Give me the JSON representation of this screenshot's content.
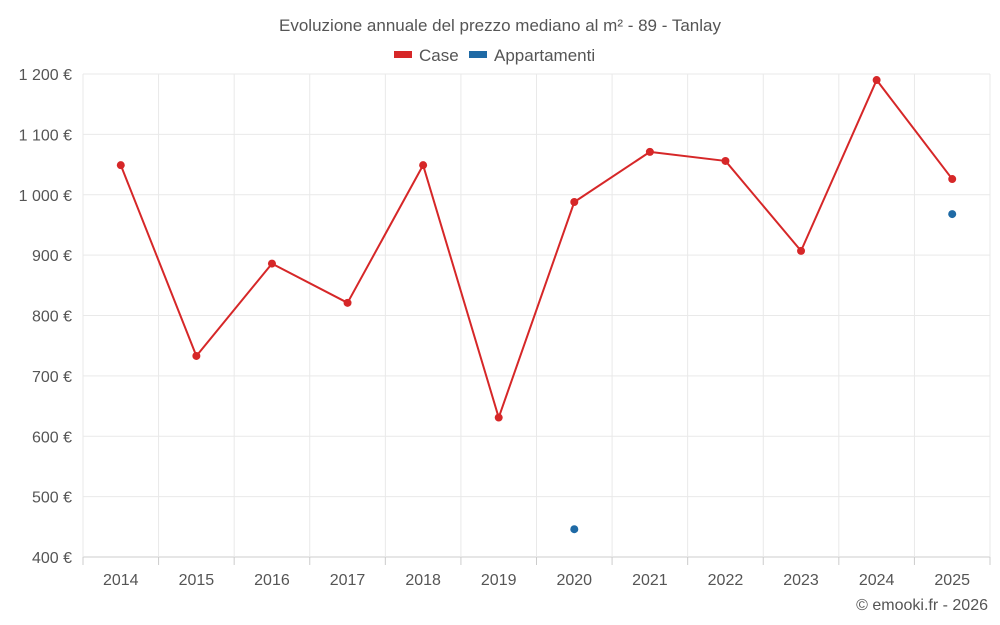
{
  "chart_data": {
    "type": "line",
    "title": "Evoluzione annuale del prezzo mediano al m² - 89 - Tanlay",
    "categories": [
      "2014",
      "2015",
      "2016",
      "2017",
      "2018",
      "2019",
      "2020",
      "2021",
      "2022",
      "2023",
      "2024",
      "2025"
    ],
    "series": [
      {
        "name": "Case",
        "color": "#d62728",
        "values": [
          1049,
          733,
          886,
          821,
          1049,
          631,
          988,
          1071,
          1056,
          907,
          1190,
          1026
        ]
      },
      {
        "name": "Appartamenti",
        "color": "#1f6aa5",
        "values": [
          null,
          null,
          null,
          null,
          null,
          null,
          446,
          null,
          null,
          null,
          null,
          968
        ]
      }
    ],
    "ylim": [
      400,
      1200
    ],
    "yticks": [
      400,
      500,
      600,
      700,
      800,
      900,
      1000,
      1100,
      1200
    ],
    "ytick_labels": [
      "400 €",
      "500 €",
      "600 €",
      "700 €",
      "800 €",
      "900 €",
      "1 000 €",
      "1 100 €",
      "1 200 €"
    ],
    "xlabel": "",
    "ylabel": "",
    "legend_position": "top-center",
    "grid": true
  },
  "credit": "© emooki.fr - 2026"
}
